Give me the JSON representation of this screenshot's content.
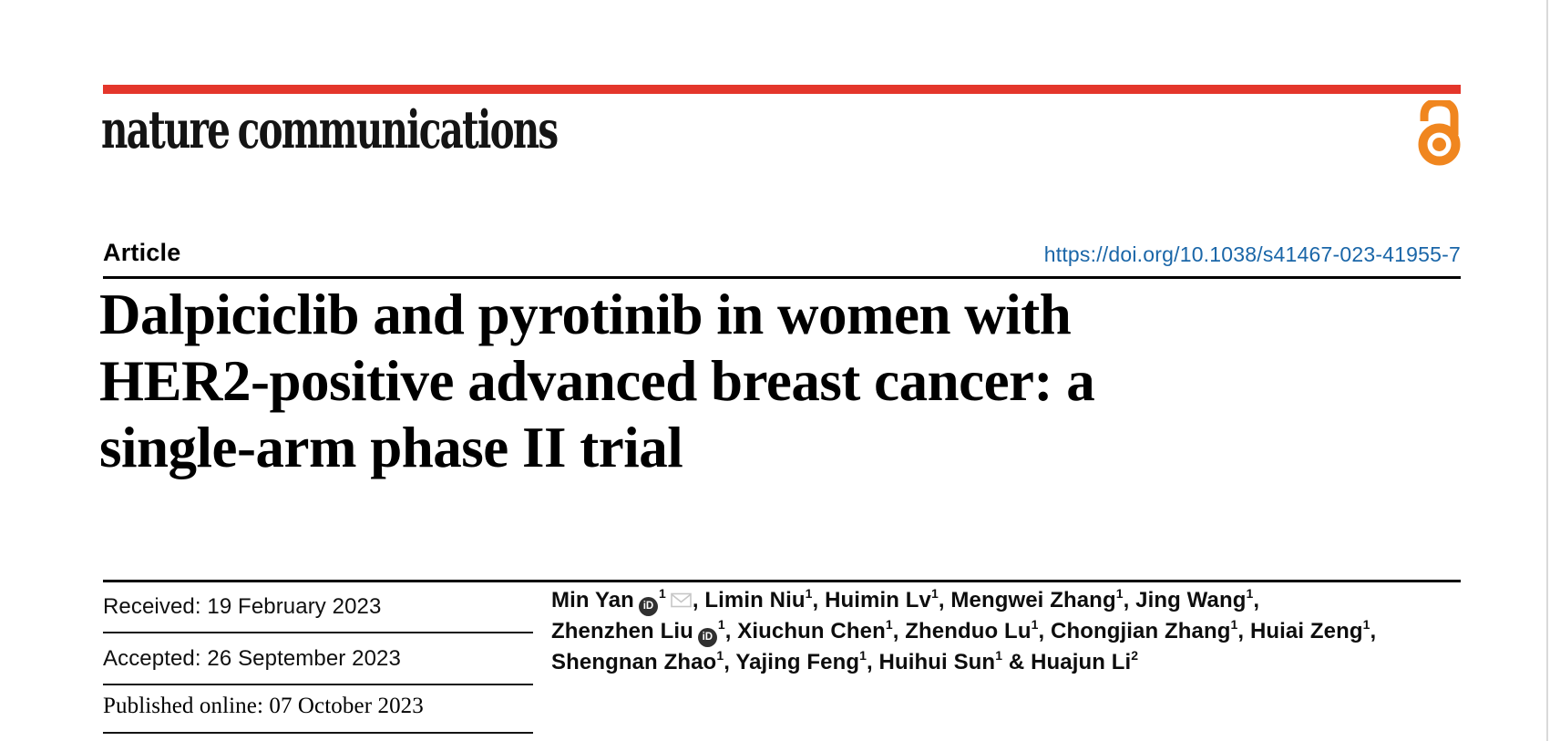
{
  "page": {
    "brand": "nature communications"
  },
  "colors": {
    "accent_red": "#e4362b",
    "oa_orange": "#f0861f",
    "link_blue": "#1a66a8",
    "orcid_dark": "#303030",
    "envelope_gray": "#c6c6c6"
  },
  "article": {
    "kicker": "Article",
    "doi": "https://doi.org/10.1038/s41467-023-41955-7",
    "title_lines": [
      "Dalpiciclib and pyrotinib in women with",
      "HER2-positive advanced breast cancer: a",
      "single-arm phase II trial"
    ]
  },
  "dates": {
    "received": "Received: 19 February 2023",
    "accepted": "Accepted: 26 September 2023",
    "published": "Published online: 07 October 2023"
  },
  "authors": {
    "lines": [
      [
        {
          "name": "Min Yan",
          "orcid": true,
          "sup": "1",
          "envelope": true,
          "sep": ", "
        },
        {
          "name": "Limin Niu",
          "sup": "1",
          "sep": ", "
        },
        {
          "name": "Huimin Lv",
          "sup": "1",
          "sep": ", "
        },
        {
          "name": "Mengwei Zhang",
          "sup": "1",
          "sep": ", "
        },
        {
          "name": "Jing Wang",
          "sup": "1",
          "sep": ","
        }
      ],
      [
        {
          "name": "Zhenzhen Liu",
          "orcid": true,
          "sup": "1",
          "sep": ", "
        },
        {
          "name": "Xiuchun Chen",
          "sup": "1",
          "sep": ", "
        },
        {
          "name": "Zhenduo Lu",
          "sup": "1",
          "sep": ", "
        },
        {
          "name": "Chongjian Zhang",
          "sup": "1",
          "sep": ", "
        },
        {
          "name": "Huiai Zeng",
          "sup": "1",
          "sep": ","
        }
      ],
      [
        {
          "name": "Shengnan Zhao",
          "sup": "1",
          "sep": ", "
        },
        {
          "name": "Yajing Feng",
          "sup": "1",
          "sep": ", "
        },
        {
          "name": "Huihui Sun",
          "sup": "1",
          "sep": " & "
        },
        {
          "name": "Huajun Li",
          "sup": "2",
          "sep": ""
        }
      ]
    ]
  }
}
